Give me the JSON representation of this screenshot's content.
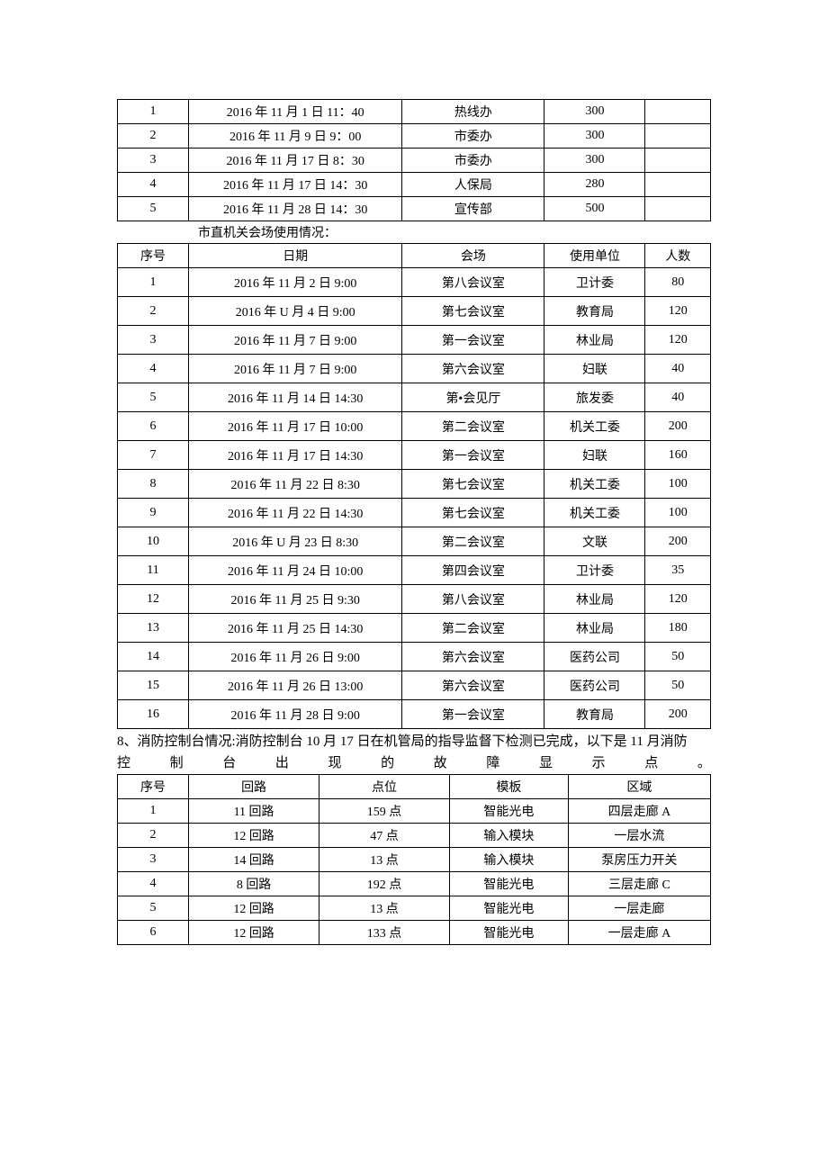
{
  "table1": {
    "rows": [
      [
        "1",
        "2016 年 11 月 1 日 11：40",
        "热线办",
        "300",
        ""
      ],
      [
        "2",
        "2016 年 11 月 9 日 9：00",
        "市委办",
        "300",
        ""
      ],
      [
        "3",
        "2016 年 11 月 17 日 8：30",
        "市委办",
        "300",
        ""
      ],
      [
        "4",
        "2016 年 11 月 17 日 14：30",
        "人保局",
        "280",
        ""
      ],
      [
        "5",
        "2016 年 11 月 28 日 14：30",
        "宣传部",
        "500",
        ""
      ]
    ]
  },
  "section2_title": "市直机关会场使用情况：",
  "table2": {
    "headers": [
      "序号",
      "日期",
      "会场",
      "使用单位",
      "人数"
    ],
    "rows": [
      [
        "1",
        "2016 年 11 月 2 日 9:00",
        "第八会议室",
        "卫计委",
        "80"
      ],
      [
        "2",
        "2016 年 U 月 4 日 9:00",
        "第七会议室",
        "教育局",
        "120"
      ],
      [
        "3",
        "2016 年 11 月 7 日 9:00",
        "第一会议室",
        "林业局",
        "120"
      ],
      [
        "4",
        "2016 年 11 月 7 日 9:00",
        "第六会议室",
        "妇联",
        "40"
      ],
      [
        "5",
        "2016 年 11 月 14 日 14:30",
        "第•会见厅",
        "旅发委",
        "40"
      ],
      [
        "6",
        "2016 年 11 月 17 日 10:00",
        "第二会议室",
        "机关工委",
        "200"
      ],
      [
        "7",
        "2016 年 11 月 17 日 14:30",
        "第一会议室",
        "妇联",
        "160"
      ],
      [
        "8",
        "2016 年 11 月 22 日 8:30",
        "第七会议室",
        "机关工委",
        "100"
      ],
      [
        "9",
        "2016 年 11 月 22 日 14:30",
        "第七会议室",
        "机关工委",
        "100"
      ],
      [
        "10",
        "2016 年 U 月 23 日 8:30",
        "第二会议室",
        "文联",
        "200"
      ],
      [
        "11",
        "2016 年 11 月 24 日 10:00",
        "第四会议室",
        "卫计委",
        "35"
      ],
      [
        "12",
        "2016 年 11 月 25 日 9:30",
        "第八会议室",
        "林业局",
        "120"
      ],
      [
        "13",
        "2016 年 11 月 25 日 14:30",
        "第二会议室",
        "林业局",
        "180"
      ],
      [
        "14",
        "2016 年 11 月 26 日 9:00",
        "第六会议室",
        "医药公司",
        "50"
      ],
      [
        "15",
        "2016 年 11 月 26 日 13:00",
        "第六会议室",
        "医药公司",
        "50"
      ],
      [
        "16",
        "2016 年 11 月 28 日 9:00",
        "第一会议室",
        "教育局",
        "200"
      ]
    ]
  },
  "para8_line1": "8、消防控制台情况:消防控制台 10 月 17 日在机管局的指导监督下检测已完成，以下是 11 月消防",
  "para8_line2_chars": [
    "控",
    "制",
    "台",
    "出",
    "现",
    "的",
    "故",
    "障",
    "显",
    "示",
    "点",
    "。"
  ],
  "table3": {
    "headers": [
      "序号",
      "回路",
      "点位",
      "模板",
      "区域"
    ],
    "rows": [
      [
        "1",
        "11 回路",
        "159 点",
        "智能光电",
        "四层走廊 A"
      ],
      [
        "2",
        "12 回路",
        "47 点",
        "输入模块",
        "一层水流"
      ],
      [
        "3",
        "14 回路",
        "13 点",
        "输入模块",
        "泵房压力开关"
      ],
      [
        "4",
        "8 回路",
        "192 点",
        "智能光电",
        "三层走廊 C"
      ],
      [
        "5",
        "12 回路",
        "13 点",
        "智能光电",
        "一层走廊"
      ],
      [
        "6",
        "12 回路",
        "133 点",
        "智能光电",
        "一层走廊 A"
      ]
    ]
  }
}
